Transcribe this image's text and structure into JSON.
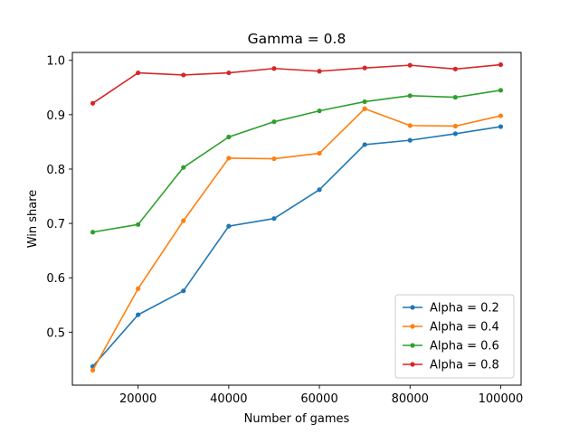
{
  "chart_data": {
    "type": "line",
    "title": "Gamma = 0.8",
    "xlabel": "Number of games",
    "ylabel": "Win share",
    "x": [
      10000,
      20000,
      30000,
      40000,
      50000,
      60000,
      70000,
      80000,
      90000,
      100000
    ],
    "xlim": [
      5500,
      104500
    ],
    "ylim": [
      0.4025,
      1.0145
    ],
    "x_ticks": [
      20000,
      40000,
      60000,
      80000,
      100000
    ],
    "x_tick_labels": [
      "20000",
      "40000",
      "60000",
      "80000",
      "100000"
    ],
    "y_ticks": [
      0.5,
      0.6,
      0.7,
      0.8,
      0.9,
      1.0
    ],
    "y_tick_labels": [
      "0.5",
      "0.6",
      "0.7",
      "0.8",
      "0.9",
      "1.0"
    ],
    "grid": false,
    "legend_position": "lower-right",
    "series": [
      {
        "name": "Alpha = 0.2",
        "color": "#1f77b4",
        "values": [
          0.437,
          0.532,
          0.576,
          0.695,
          0.709,
          0.762,
          0.845,
          0.853,
          0.865,
          0.878
        ]
      },
      {
        "name": "Alpha = 0.4",
        "color": "#ff7f0e",
        "values": [
          0.43,
          0.58,
          0.705,
          0.82,
          0.819,
          0.829,
          0.911,
          0.88,
          0.879,
          0.898
        ]
      },
      {
        "name": "Alpha = 0.6",
        "color": "#2ca02c",
        "values": [
          0.684,
          0.698,
          0.803,
          0.859,
          0.887,
          0.907,
          0.924,
          0.935,
          0.932,
          0.945
        ]
      },
      {
        "name": "Alpha = 0.8",
        "color": "#d62728",
        "values": [
          0.921,
          0.977,
          0.973,
          0.977,
          0.985,
          0.98,
          0.986,
          0.991,
          0.984,
          0.992
        ]
      }
    ]
  }
}
